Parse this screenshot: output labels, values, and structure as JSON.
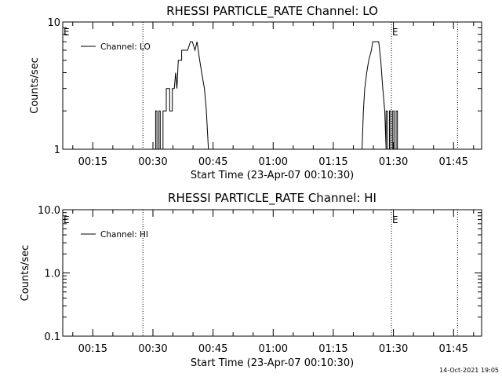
{
  "chart_data": [
    {
      "type": "line",
      "title": "RHESSI PARTICLE_RATE Channel: LO",
      "xlabel": "Start Time (23-Apr-07 00:10:30)",
      "ylabel": "Counts/sec",
      "yscale": "log",
      "ylim": [
        1,
        10
      ],
      "xlim": [
        "00:07:30",
        "01:52:00"
      ],
      "yticks": [
        "1",
        "10"
      ],
      "xticks": [
        "00:15",
        "00:30",
        "00:45",
        "01:00",
        "01:15",
        "01:30",
        "01:45"
      ],
      "legend": {
        "position": "top-left",
        "label": "Channel: LO"
      },
      "markers": [
        {
          "label": "E",
          "time": "00:07:30"
        },
        {
          "label": "E",
          "time": "01:29:30"
        }
      ],
      "event_lines": [
        "00:27:30",
        "01:29:30",
        "01:46:00"
      ],
      "series": [
        {
          "name": "Channel: LO",
          "points": [
            [
              "00:30:40",
              1
            ],
            [
              "00:30:40",
              2
            ],
            [
              "00:31:00",
              2
            ],
            [
              "00:31:00",
              1
            ],
            [
              "00:31:30",
              1
            ],
            [
              "00:31:30",
              2
            ],
            [
              "00:31:50",
              2
            ],
            [
              "00:31:50",
              1
            ],
            [
              "00:32:30",
              1
            ],
            [
              "00:32:30",
              2
            ],
            [
              "00:33:20",
              2
            ],
            [
              "00:33:20",
              3
            ],
            [
              "00:34:10",
              3
            ],
            [
              "00:34:10",
              2
            ],
            [
              "00:34:50",
              2
            ],
            [
              "00:34:50",
              3
            ],
            [
              "00:35:20",
              3
            ],
            [
              "00:35:40",
              4
            ],
            [
              "00:36:00",
              3
            ],
            [
              "00:36:20",
              5
            ],
            [
              "00:37:10",
              5
            ],
            [
              "00:37:10",
              6
            ],
            [
              "00:38:40",
              6
            ],
            [
              "00:39:20",
              7
            ],
            [
              "00:39:50",
              7
            ],
            [
              "00:40:30",
              6
            ],
            [
              "00:41:00",
              7
            ],
            [
              "00:41:40",
              5
            ],
            [
              "00:42:10",
              4
            ],
            [
              "00:42:50",
              3
            ],
            [
              "00:43:20",
              2
            ],
            [
              "00:43:50",
              1
            ],
            [
              "01:22:10",
              1
            ],
            [
              "01:22:30",
              2
            ],
            [
              "01:22:50",
              3
            ],
            [
              "01:23:20",
              4
            ],
            [
              "01:23:50",
              5
            ],
            [
              "01:24:30",
              6
            ],
            [
              "01:24:50",
              7
            ],
            [
              "01:26:20",
              7
            ],
            [
              "01:26:50",
              5
            ],
            [
              "01:27:20",
              3
            ],
            [
              "01:27:50",
              2
            ],
            [
              "01:28:10",
              1
            ],
            [
              "01:28:10",
              2
            ],
            [
              "01:28:30",
              2
            ],
            [
              "01:28:30",
              1
            ],
            [
              "01:29:00",
              1
            ],
            [
              "01:29:00",
              2
            ],
            [
              "01:29:20",
              2
            ],
            [
              "01:29:20",
              1
            ],
            [
              "01:29:50",
              1
            ],
            [
              "01:29:50",
              2
            ],
            [
              "01:30:10",
              2
            ],
            [
              "01:30:10",
              1
            ],
            [
              "01:30:40",
              1
            ],
            [
              "01:30:40",
              2
            ],
            [
              "01:31:00",
              2
            ],
            [
              "01:31:00",
              1
            ]
          ]
        }
      ]
    },
    {
      "type": "line",
      "title": "RHESSI PARTICLE_RATE Channel: HI",
      "xlabel": "Start Time (23-Apr-07 00:10:30)",
      "ylabel": "Counts/sec",
      "yscale": "log",
      "ylim": [
        0.1,
        10
      ],
      "xlim": [
        "00:07:30",
        "01:52:00"
      ],
      "yticks": [
        "0.1",
        "1.0",
        "10.0"
      ],
      "xticks": [
        "00:15",
        "00:30",
        "00:45",
        "01:00",
        "01:15",
        "01:30",
        "01:45"
      ],
      "legend": {
        "position": "top-left",
        "label": "Channel: HI"
      },
      "markers": [
        {
          "label": "E",
          "time": "00:07:30"
        },
        {
          "label": "E",
          "time": "01:29:30"
        }
      ],
      "event_lines": [
        "00:27:30",
        "01:29:30",
        "01:46:00"
      ],
      "series": [
        {
          "name": "Channel: HI",
          "points": []
        }
      ]
    }
  ],
  "footer": {
    "timestamp": "14-Oct-2021 19:05"
  }
}
